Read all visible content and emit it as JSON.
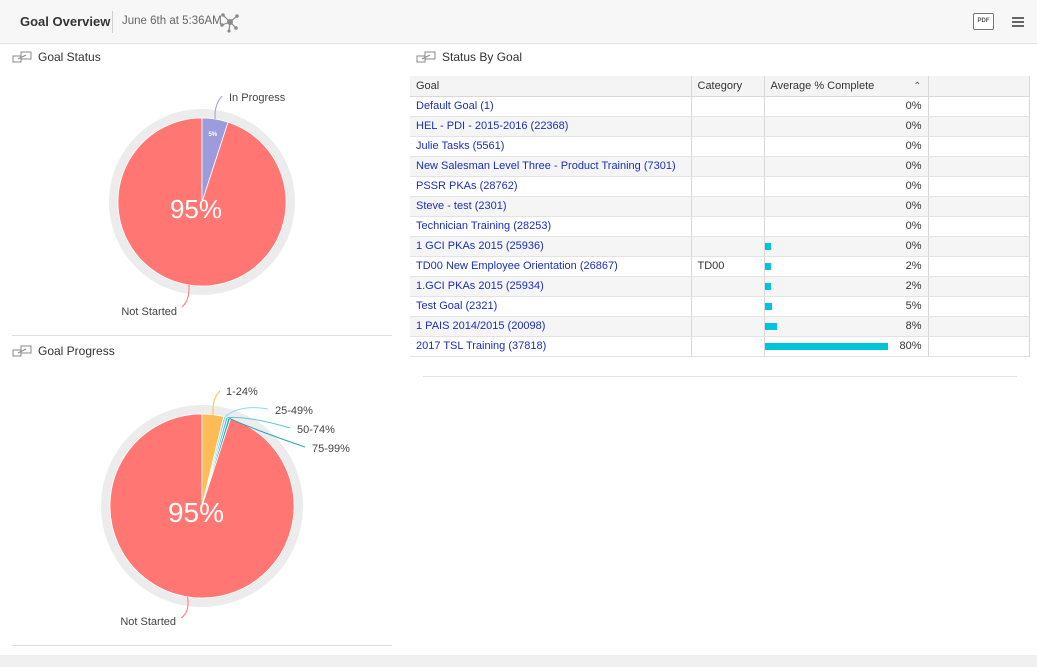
{
  "header": {
    "title": "Goal Overview",
    "timestamp": "June 6th at 5:36AM",
    "pdf_label": "PDF"
  },
  "panels": {
    "goal_status": {
      "title": "Goal Status"
    },
    "goal_progress": {
      "title": "Goal Progress"
    },
    "status_by_goal": {
      "title": "Status By Goal"
    }
  },
  "colors": {
    "not_started": "#ff7672",
    "in_progress": "#9c9cdc",
    "range_1_24": "#ffbb55",
    "range_25_49": "#8ed9f2",
    "range_50_74": "#5cc7d6",
    "range_75_99": "#2aa5b5",
    "bar": "#00c3dc",
    "link": "#1a2fb8"
  },
  "chart_data": [
    {
      "type": "pie",
      "title": "Goal Status",
      "slices": [
        {
          "name": "Not Started",
          "value": 95,
          "label": "95%"
        },
        {
          "name": "In Progress",
          "value": 5,
          "label": "5%"
        }
      ]
    },
    {
      "type": "pie",
      "title": "Goal Progress",
      "slices": [
        {
          "name": "Not Started",
          "value": 95,
          "label": "95%"
        },
        {
          "name": "1-24%",
          "value": 3.8
        },
        {
          "name": "25-49%",
          "value": 0.4
        },
        {
          "name": "50-74%",
          "value": 0.4
        },
        {
          "name": "75-99%",
          "value": 0.4
        }
      ]
    }
  ],
  "table": {
    "columns": [
      "Goal",
      "Category",
      "Average % Complete",
      ""
    ],
    "rows": [
      {
        "goal": "Default Goal (1)",
        "category": "",
        "avg_percent": 0,
        "display": "0%",
        "show_bar": false
      },
      {
        "goal": "HEL - PDI - 2015-2016 (22368)",
        "category": "",
        "avg_percent": 0,
        "display": "0%",
        "show_bar": false
      },
      {
        "goal": "Julie Tasks (5561)",
        "category": "",
        "avg_percent": 0,
        "display": "0%",
        "show_bar": false
      },
      {
        "goal": "New Salesman Level Three - Product Training (7301)",
        "category": "",
        "avg_percent": 0,
        "display": "0%",
        "show_bar": false
      },
      {
        "goal": "PSSR PKAs (28762)",
        "category": "",
        "avg_percent": 0,
        "display": "0%",
        "show_bar": false
      },
      {
        "goal": "Steve - test (2301)",
        "category": "",
        "avg_percent": 0,
        "display": "0%",
        "show_bar": false
      },
      {
        "goal": "Technician Training (28253)",
        "category": "",
        "avg_percent": 0,
        "display": "0%",
        "show_bar": false
      },
      {
        "goal": "1 GCI PKAs 2015 (25936)",
        "category": "",
        "avg_percent": 0.4,
        "display": "0%",
        "show_bar": true
      },
      {
        "goal": "TD00 New Employee Orientation (26867)",
        "category": "TD00",
        "avg_percent": 2,
        "display": "2%",
        "show_bar": true
      },
      {
        "goal": "1.GCI PKAs 2015 (25934)",
        "category": "",
        "avg_percent": 2,
        "display": "2%",
        "show_bar": true
      },
      {
        "goal": "Test Goal (2321)",
        "category": "",
        "avg_percent": 5,
        "display": "5%",
        "show_bar": true
      },
      {
        "goal": "1 PAIS 2014/2015 (20098)",
        "category": "",
        "avg_percent": 8,
        "display": "8%",
        "show_bar": true
      },
      {
        "goal": "2017 TSL Training (37818)",
        "category": "",
        "avg_percent": 80,
        "display": "80%",
        "show_bar": true
      }
    ]
  }
}
